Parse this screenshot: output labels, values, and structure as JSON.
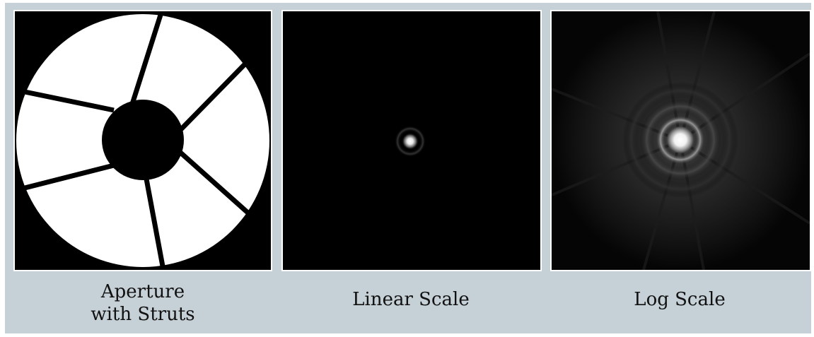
{
  "panels": [
    {
      "caption_lines": [
        "Aperture",
        "with Struts"
      ]
    },
    {
      "caption_lines": [
        "Linear Scale"
      ]
    },
    {
      "caption_lines": [
        "Log Scale"
      ]
    }
  ],
  "colors": {
    "background": "#c5d0d7",
    "image_black": "#000000",
    "aperture_white": "#ffffff"
  }
}
